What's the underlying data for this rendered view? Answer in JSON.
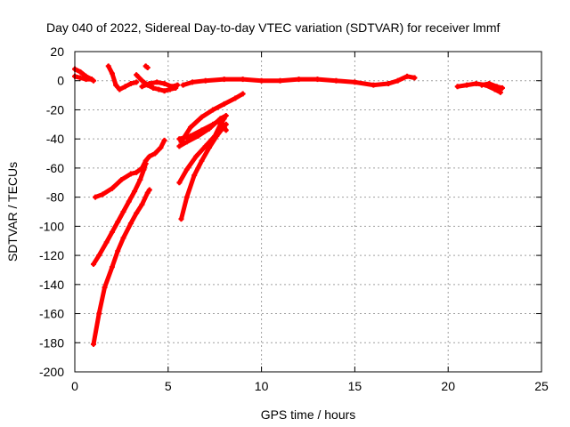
{
  "chart_data": {
    "type": "scatter",
    "title": "Day 040 of 2022, Sidereal Day-to-day VTEC variation (SDTVAR) for receiver lmmf",
    "xlabel": "GPS time / hours",
    "ylabel": "SDTVAR / TECUs",
    "xlim": [
      0,
      25
    ],
    "ylim": [
      -200,
      20
    ],
    "xticks": [
      "0",
      "5",
      "10",
      "15",
      "20",
      "25"
    ],
    "yticks": [
      "20",
      "0",
      "-20",
      "-40",
      "-60",
      "-80",
      "-100",
      "-120",
      "-140",
      "-160",
      "-180",
      "-200"
    ],
    "grid": true,
    "marker_color": "#ff0000",
    "series": [
      {
        "points": [
          [
            0,
            8
          ],
          [
            0.3,
            6
          ],
          [
            0.6,
            3
          ],
          [
            0.9,
            1
          ],
          [
            1.0,
            0
          ]
        ]
      },
      {
        "points": [
          [
            0,
            3
          ],
          [
            0.3,
            2
          ],
          [
            0.6,
            1
          ],
          [
            0.9,
            1
          ]
        ]
      },
      {
        "points": [
          [
            1.8,
            10
          ],
          [
            2.0,
            5
          ],
          [
            2.2,
            -3
          ],
          [
            2.4,
            -6
          ],
          [
            2.7,
            -4
          ],
          [
            3.0,
            -2
          ],
          [
            3.3,
            -1
          ]
        ]
      },
      {
        "points": [
          [
            3.3,
            4
          ],
          [
            3.6,
            0
          ],
          [
            3.9,
            -3
          ],
          [
            4.2,
            -5
          ],
          [
            4.5,
            -6
          ],
          [
            4.8,
            -7
          ],
          [
            5.1,
            -6
          ],
          [
            5.4,
            -5
          ]
        ]
      },
      {
        "points": [
          [
            3.6,
            -4
          ],
          [
            4.0,
            -2
          ],
          [
            4.4,
            -1
          ],
          [
            4.8,
            -2
          ],
          [
            5.2,
            -4
          ],
          [
            5.5,
            -3
          ]
        ]
      },
      {
        "points": [
          [
            3.8,
            10
          ],
          [
            3.9,
            9
          ]
        ]
      },
      {
        "points": [
          [
            5.8,
            -3
          ],
          [
            6.3,
            -1
          ],
          [
            7.0,
            0
          ],
          [
            8.0,
            1
          ],
          [
            9.0,
            1
          ],
          [
            10.0,
            0
          ],
          [
            11.0,
            0
          ],
          [
            12.0,
            1
          ],
          [
            13.0,
            1
          ],
          [
            14.0,
            0
          ],
          [
            15.0,
            -1
          ],
          [
            16.0,
            -3
          ],
          [
            16.8,
            -2
          ],
          [
            17.3,
            0
          ],
          [
            17.8,
            3
          ],
          [
            18.2,
            2
          ]
        ]
      },
      {
        "points": [
          [
            20.5,
            -4
          ],
          [
            21.0,
            -3
          ],
          [
            21.5,
            -2
          ],
          [
            22.0,
            -3
          ],
          [
            22.5,
            -6
          ],
          [
            22.8,
            -8
          ]
        ]
      },
      {
        "points": [
          [
            21.8,
            -3
          ],
          [
            22.2,
            -2
          ],
          [
            22.6,
            -4
          ],
          [
            22.9,
            -5
          ]
        ]
      },
      {
        "points": [
          [
            1.1,
            -80
          ],
          [
            1.5,
            -78
          ],
          [
            2.0,
            -74
          ],
          [
            2.5,
            -68
          ],
          [
            3.0,
            -64
          ],
          [
            3.3,
            -63
          ],
          [
            3.6,
            -60
          ],
          [
            3.8,
            -55
          ],
          [
            4.0,
            -52
          ],
          [
            4.3,
            -50
          ],
          [
            4.6,
            -46
          ],
          [
            4.8,
            -41
          ]
        ]
      },
      {
        "points": [
          [
            1.0,
            -126
          ],
          [
            1.3,
            -120
          ],
          [
            1.7,
            -111
          ],
          [
            2.0,
            -104
          ],
          [
            2.3,
            -97
          ],
          [
            2.6,
            -90
          ],
          [
            2.9,
            -83
          ],
          [
            3.2,
            -76
          ],
          [
            3.5,
            -68
          ],
          [
            3.7,
            -61
          ],
          [
            3.8,
            -57
          ]
        ]
      },
      {
        "points": [
          [
            1.0,
            -181
          ],
          [
            1.3,
            -160
          ],
          [
            1.6,
            -142
          ],
          [
            2.0,
            -128
          ],
          [
            2.3,
            -117
          ],
          [
            2.6,
            -108
          ],
          [
            3.0,
            -98
          ],
          [
            3.3,
            -91
          ],
          [
            3.6,
            -85
          ],
          [
            3.9,
            -77
          ],
          [
            4.0,
            -75
          ]
        ]
      },
      {
        "points": [
          [
            5.7,
            -95
          ],
          [
            6.0,
            -80
          ],
          [
            6.4,
            -65
          ],
          [
            6.8,
            -55
          ],
          [
            7.2,
            -46
          ],
          [
            7.6,
            -38
          ],
          [
            7.9,
            -33
          ],
          [
            8.1,
            -30
          ]
        ]
      },
      {
        "points": [
          [
            5.6,
            -70
          ],
          [
            6.0,
            -61
          ],
          [
            6.5,
            -52
          ],
          [
            7.0,
            -45
          ],
          [
            7.5,
            -38
          ],
          [
            7.8,
            -30
          ],
          [
            8.0,
            -26
          ]
        ]
      },
      {
        "points": [
          [
            5.6,
            -45
          ],
          [
            6.0,
            -42
          ],
          [
            6.6,
            -38
          ],
          [
            7.2,
            -33
          ],
          [
            7.8,
            -26
          ],
          [
            8.1,
            -24
          ]
        ]
      },
      {
        "points": [
          [
            5.7,
            -42
          ],
          [
            6.2,
            -32
          ],
          [
            6.8,
            -25
          ],
          [
            7.4,
            -20
          ],
          [
            8.0,
            -16
          ],
          [
            8.6,
            -12
          ],
          [
            9.0,
            -9
          ]
        ]
      },
      {
        "points": [
          [
            5.6,
            -40
          ],
          [
            6.2,
            -38
          ],
          [
            6.8,
            -34
          ],
          [
            7.4,
            -30
          ],
          [
            7.8,
            -27
          ],
          [
            8.1,
            -34
          ]
        ]
      }
    ]
  }
}
